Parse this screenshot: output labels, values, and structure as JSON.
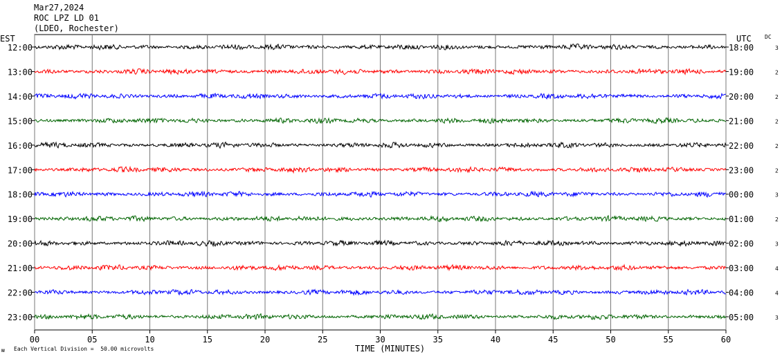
{
  "header": {
    "date": "Mar27,2024",
    "station": "ROC LPZ LD 01",
    "network": "(LDEO, Rochester)"
  },
  "left_tz": "EST",
  "right_tz": "UTC",
  "dc_label": "DC",
  "footer": {
    "scale_note": "Each Vertical Division =  50.00 microvolts",
    "corner_mark": "ᴍ"
  },
  "chart_data": {
    "type": "line",
    "xlabel": "TIME (MINUTES)",
    "x_ticks": [
      "00",
      "05",
      "10",
      "15",
      "20",
      "25",
      "30",
      "35",
      "40",
      "45",
      "50",
      "55",
      "60"
    ],
    "xlim": [
      0,
      60
    ],
    "grid": true,
    "rows": [
      {
        "est": "12:00",
        "utc": "18:00",
        "dc": "3",
        "color": "#000000"
      },
      {
        "est": "13:00",
        "utc": "19:00",
        "dc": "2",
        "color": "#ff0000"
      },
      {
        "est": "14:00",
        "utc": "20:00",
        "dc": "2",
        "color": "#0000ff"
      },
      {
        "est": "15:00",
        "utc": "21:00",
        "dc": "2",
        "color": "#006400"
      },
      {
        "est": "16:00",
        "utc": "22:00",
        "dc": "2",
        "color": "#000000"
      },
      {
        "est": "17:00",
        "utc": "23:00",
        "dc": "2",
        "color": "#ff0000"
      },
      {
        "est": "18:00",
        "utc": "00:00",
        "dc": "3",
        "color": "#0000ff"
      },
      {
        "est": "19:00",
        "utc": "01:00",
        "dc": "2",
        "color": "#006400"
      },
      {
        "est": "20:00",
        "utc": "02:00",
        "dc": "3",
        "color": "#000000"
      },
      {
        "est": "21:00",
        "utc": "03:00",
        "dc": "4",
        "color": "#ff0000"
      },
      {
        "est": "22:00",
        "utc": "04:00",
        "dc": "4",
        "color": "#0000ff"
      },
      {
        "est": "23:00",
        "utc": "05:00",
        "dc": "3",
        "color": "#006400"
      }
    ]
  }
}
